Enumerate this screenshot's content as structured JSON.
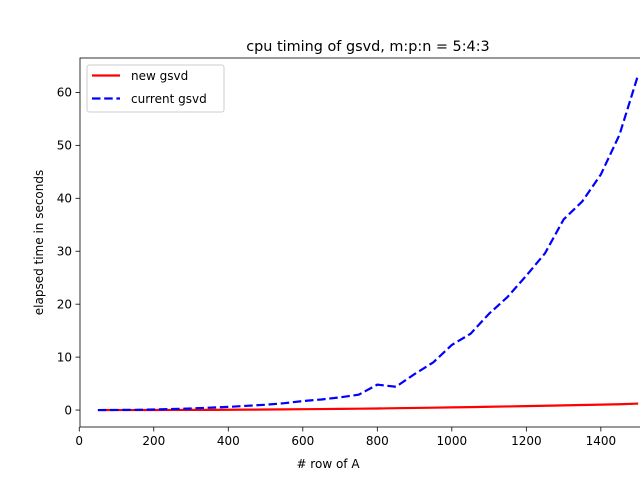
{
  "chart_data": {
    "type": "line",
    "title": "cpu timing of gsvd, m:p:n = 5:4:3",
    "xlabel": "# row of A",
    "ylabel": "elapsed time in seconds",
    "xlim": [
      2,
      1548
    ],
    "ylim": [
      -3.2,
      66.5
    ],
    "xticks": [
      0,
      200,
      400,
      600,
      800,
      1000,
      1200,
      1400
    ],
    "xtick_labels": [
      "0",
      "200",
      "400",
      "600",
      "800",
      "1000",
      "1200",
      "1400"
    ],
    "yticks": [
      0,
      10,
      20,
      30,
      40,
      50,
      60
    ],
    "ytick_labels": [
      "0",
      "10",
      "20",
      "30",
      "40",
      "50",
      "60"
    ],
    "grid": false,
    "legend_position": "top-left",
    "series": [
      {
        "name": "new gsvd",
        "color": "#ff0000",
        "line_style": "solid",
        "x": [
          50,
          100,
          150,
          200,
          250,
          300,
          350,
          400,
          450,
          500,
          550,
          600,
          650,
          700,
          750,
          800,
          850,
          900,
          950,
          1000,
          1050,
          1100,
          1150,
          1200,
          1250,
          1300,
          1350,
          1400,
          1450,
          1500
        ],
        "y": [
          0.0,
          0.0,
          0.0,
          0.01,
          0.02,
          0.03,
          0.04,
          0.06,
          0.08,
          0.1,
          0.13,
          0.16,
          0.19,
          0.22,
          0.26,
          0.3,
          0.35,
          0.4,
          0.45,
          0.5,
          0.56,
          0.62,
          0.68,
          0.74,
          0.82,
          0.88,
          0.95,
          1.02,
          1.1,
          1.22
        ]
      },
      {
        "name": "current gsvd",
        "color": "#0000ff",
        "line_style": "dashed",
        "x": [
          50,
          100,
          150,
          200,
          250,
          300,
          350,
          400,
          450,
          500,
          550,
          600,
          650,
          700,
          750,
          800,
          850,
          900,
          950,
          1000,
          1050,
          1100,
          1150,
          1200,
          1250,
          1300,
          1350,
          1400,
          1450,
          1500
        ],
        "y": [
          0.0,
          0.02,
          0.05,
          0.1,
          0.2,
          0.3,
          0.45,
          0.6,
          0.8,
          1.0,
          1.3,
          1.7,
          2.0,
          2.4,
          2.9,
          4.8,
          4.4,
          6.8,
          9.0,
          12.3,
          14.4,
          18.2,
          21.4,
          25.4,
          29.6,
          36.0,
          39.4,
          44.5,
          52.0,
          63.3
        ]
      }
    ]
  }
}
